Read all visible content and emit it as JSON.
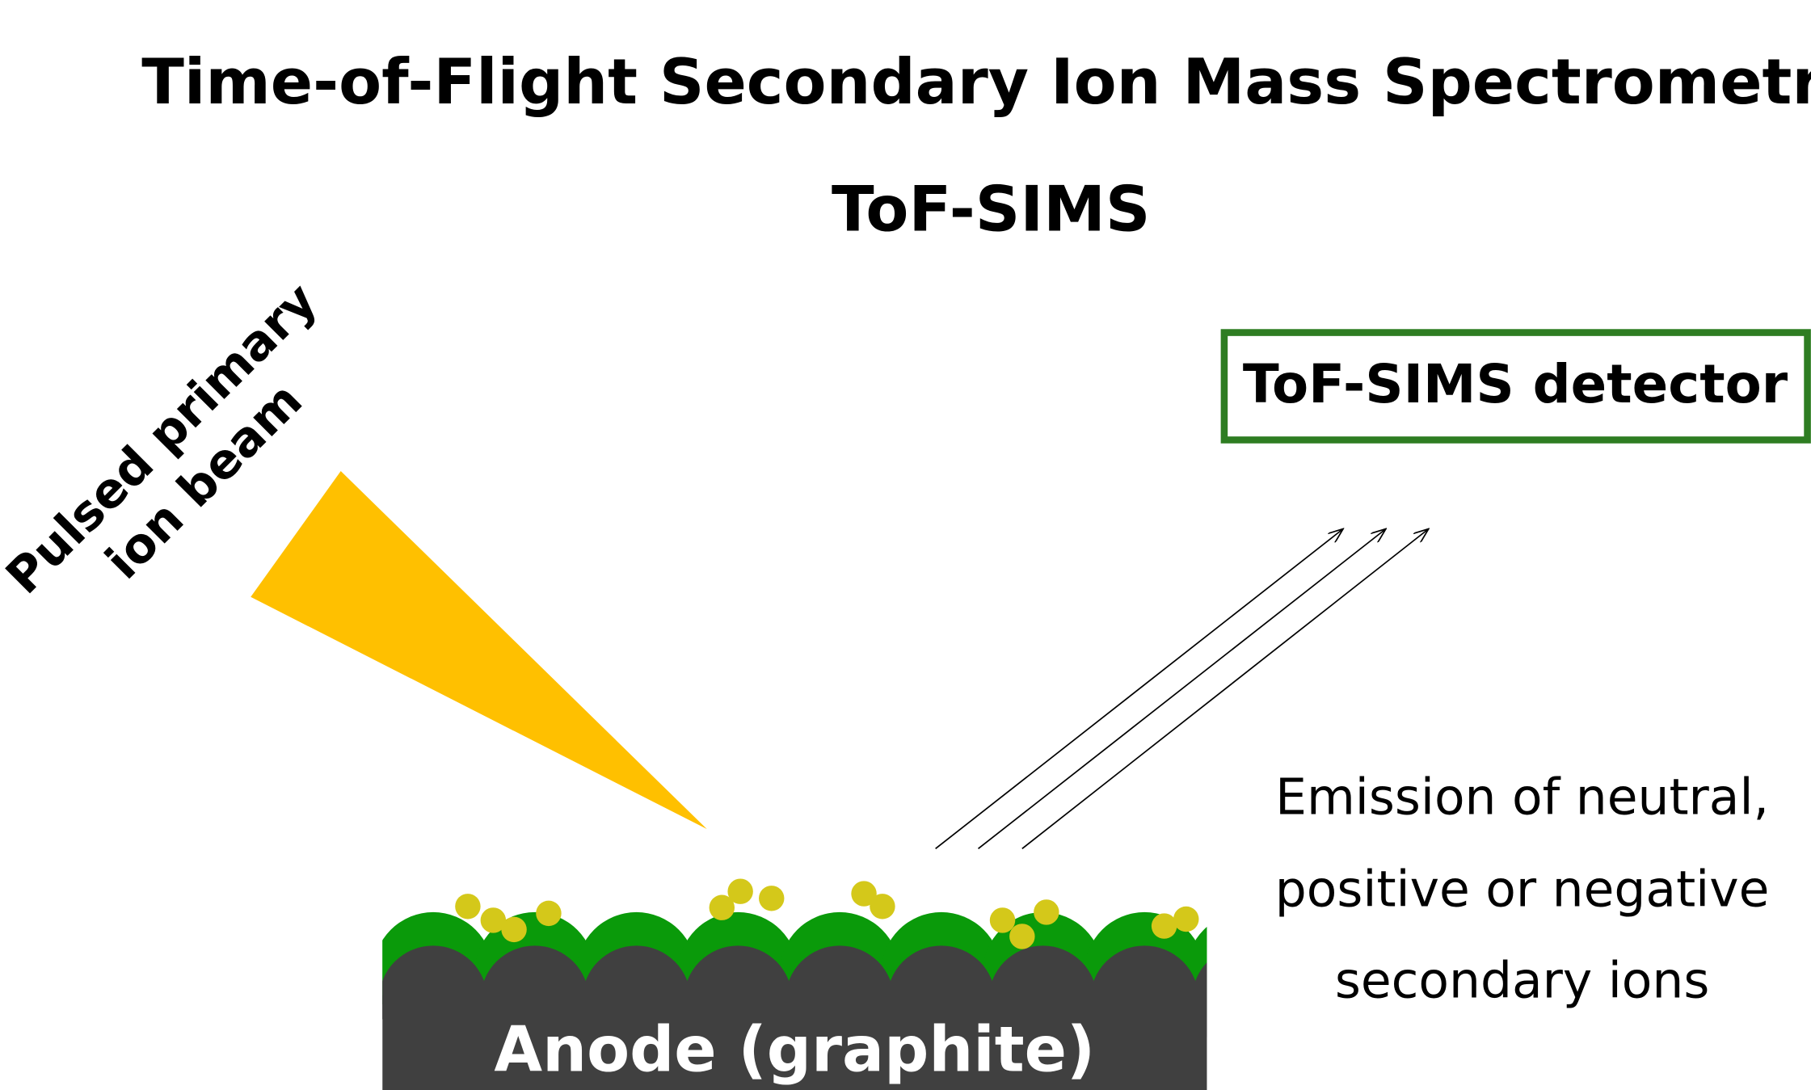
{
  "header": {
    "title": "Time-of-Flight Secondary Ion Mass Spectrometry",
    "subtitle": "ToF-SIMS"
  },
  "beam": {
    "label": [
      "Pulsed primary",
      "ion beam"
    ]
  },
  "detector": {
    "label": "ToF-SIMS detector"
  },
  "emission": {
    "label": [
      "Emission of neutral,",
      "positive or negative",
      "secondary ions"
    ]
  },
  "anode": {
    "label": "Anode (graphite)"
  }
}
